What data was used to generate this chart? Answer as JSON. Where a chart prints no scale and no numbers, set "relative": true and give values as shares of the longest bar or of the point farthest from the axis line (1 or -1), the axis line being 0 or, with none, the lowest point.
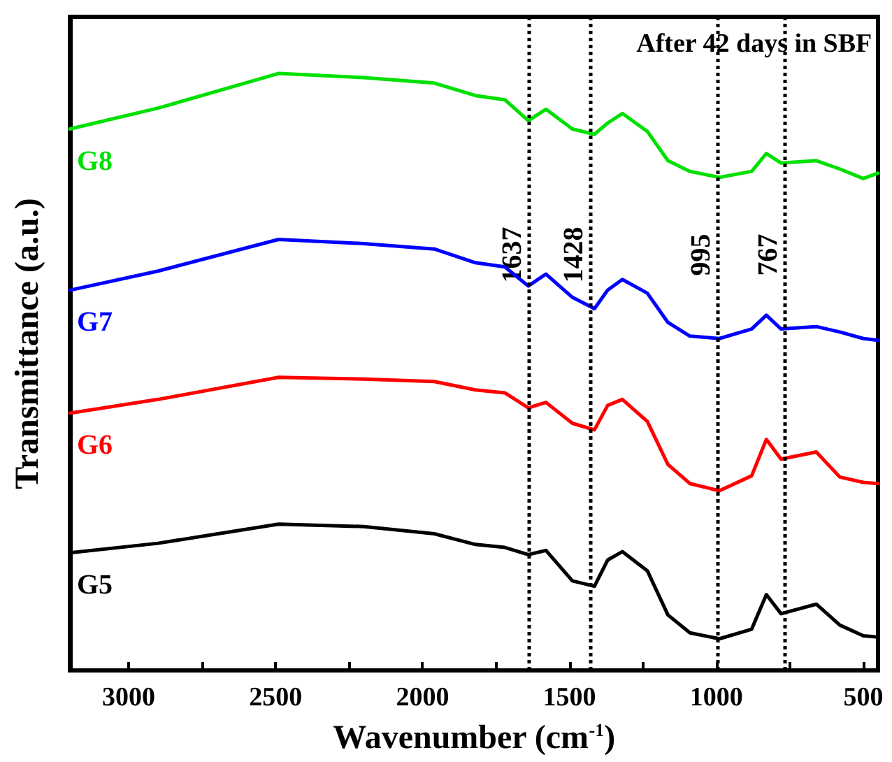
{
  "chart_data": {
    "type": "line",
    "relative": true,
    "xlabel": "Wavenumber (cm$^{-1}$)",
    "ylabel": "Transmittance (a.u.)",
    "x": [
      3200,
      2900,
      2490,
      2200,
      1960,
      1820,
      1720,
      1640,
      1580,
      1490,
      1415,
      1370,
      1320,
      1235,
      1165,
      1090,
      990,
      880,
      830,
      780,
      660,
      580,
      500,
      450
    ],
    "xlim": [
      3200,
      450
    ],
    "xticks": [
      3000,
      {
        "value": 2750,
        "label": null
      },
      2500,
      {
        "value": 2250,
        "label": null
      },
      2000,
      {
        "value": 1750,
        "label": null
      },
      1500,
      {
        "value": 1250,
        "label": null
      },
      1000,
      {
        "value": 750,
        "label": null
      },
      500
    ],
    "series": [
      {
        "name": "G5",
        "color": "#000000",
        "values": [
          0.197,
          0.213,
          0.245,
          0.241,
          0.229,
          0.211,
          0.206,
          0.194,
          0.201,
          0.15,
          0.141,
          0.185,
          0.199,
          0.167,
          0.093,
          0.063,
          0.053,
          0.069,
          0.127,
          0.095,
          0.111,
          0.076,
          0.058,
          0.056
        ]
      },
      {
        "name": "G6",
        "color": "#ff0000",
        "values": [
          0.431,
          0.454,
          0.491,
          0.488,
          0.484,
          0.47,
          0.465,
          0.44,
          0.449,
          0.414,
          0.403,
          0.444,
          0.454,
          0.417,
          0.345,
          0.313,
          0.301,
          0.326,
          0.387,
          0.354,
          0.366,
          0.324,
          0.315,
          0.313
        ]
      },
      {
        "name": "G7",
        "color": "#0000ff",
        "values": [
          0.637,
          0.669,
          0.722,
          0.715,
          0.706,
          0.683,
          0.676,
          0.644,
          0.664,
          0.625,
          0.606,
          0.637,
          0.655,
          0.632,
          0.583,
          0.56,
          0.556,
          0.572,
          0.595,
          0.572,
          0.576,
          0.567,
          0.556,
          0.553
        ]
      },
      {
        "name": "G8",
        "color": "#00e000",
        "values": [
          0.907,
          0.942,
          1.0,
          0.993,
          0.984,
          0.963,
          0.956,
          0.921,
          0.94,
          0.907,
          0.898,
          0.917,
          0.933,
          0.903,
          0.854,
          0.836,
          0.826,
          0.836,
          0.866,
          0.85,
          0.854,
          0.84,
          0.824,
          0.833
        ]
      }
    ],
    "ref_lines": [
      {
        "axis": "x",
        "value": 1637,
        "label": "1637",
        "line_style": "dotted",
        "color": "#000000"
      },
      {
        "axis": "x",
        "value": 1428,
        "label": "1428",
        "line_style": "dotted",
        "color": "#000000"
      },
      {
        "axis": "x",
        "value": 995,
        "label": "995",
        "line_style": "dotted",
        "color": "#000000"
      },
      {
        "axis": "x",
        "value": 767,
        "label": "767",
        "line_style": "dotted",
        "color": "#000000"
      }
    ],
    "annotations": [
      "After 42 days in SBF"
    ],
    "legend": false,
    "grid": false
  }
}
